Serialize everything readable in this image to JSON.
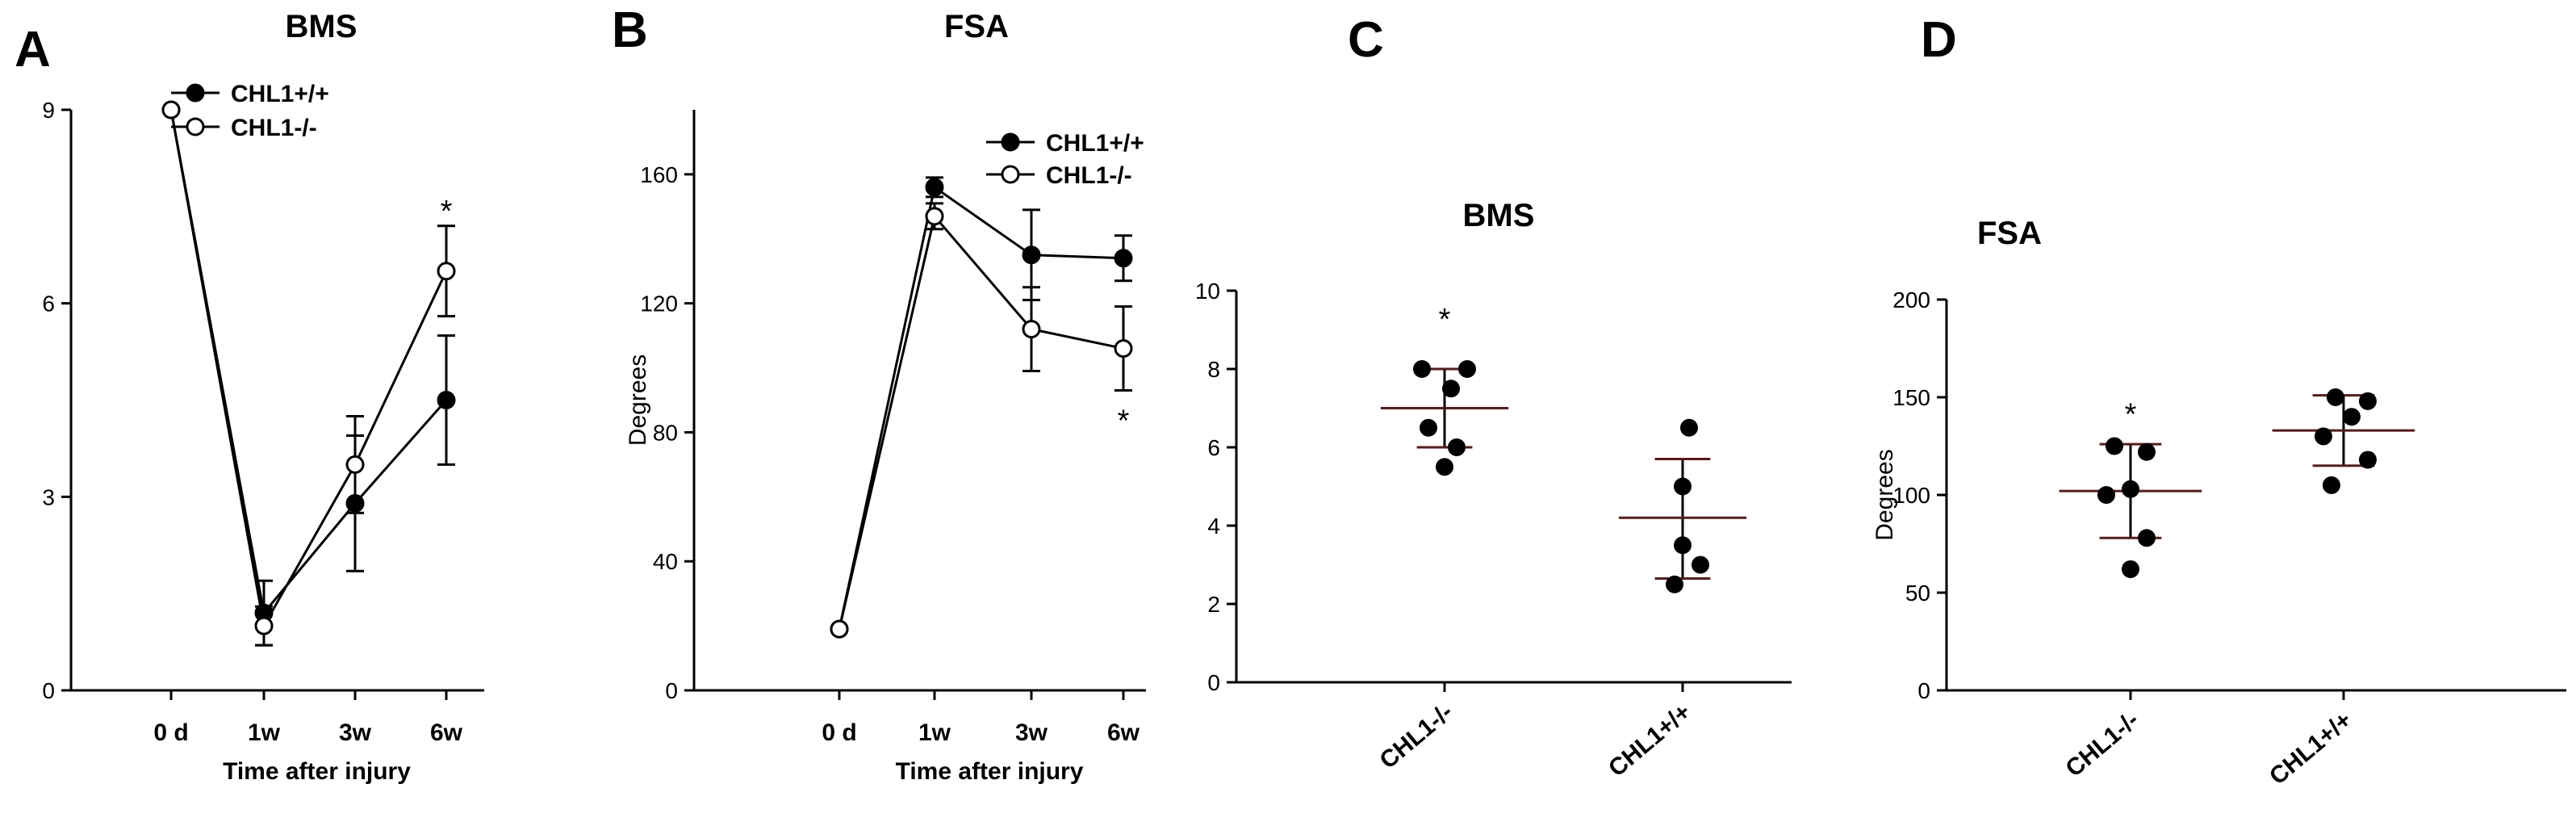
{
  "colors": {
    "axis": "#000000",
    "filled_marker": "#000000",
    "open_marker": "#ffffff",
    "mean_line_scatter": "#5a1a1a"
  },
  "chart_data": [
    {
      "panel": "A",
      "type": "line",
      "title": "BMS",
      "xlabel": "Time after injury",
      "ylabel": "",
      "categories": [
        "0 d",
        "1w",
        "3w",
        "6w"
      ],
      "ylim": [
        0,
        9
      ],
      "yticks": [
        0,
        3,
        6,
        9
      ],
      "series": [
        {
          "name": "CHL1+/+",
          "marker": "filled",
          "values": [
            9,
            1.2,
            2.9,
            4.5
          ],
          "errors": [
            0,
            0.5,
            1.05,
            1.0
          ]
        },
        {
          "name": "CHL1-/-",
          "marker": "open",
          "values": [
            9,
            1.0,
            3.5,
            6.5
          ],
          "errors": [
            0,
            0.3,
            0.75,
            0.7
          ]
        }
      ],
      "annotations": [
        {
          "text": "*",
          "category": "6w",
          "value": 7.45
        }
      ],
      "legend": "top-right"
    },
    {
      "panel": "B",
      "type": "line",
      "title": "FSA",
      "xlabel": "Time after injury",
      "ylabel": "Degrees",
      "categories": [
        "0 d",
        "1w",
        "3w",
        "6w"
      ],
      "ylim": [
        0,
        180
      ],
      "yticks": [
        0,
        40,
        80,
        120,
        160
      ],
      "series": [
        {
          "name": "CHL1+/+",
          "marker": "filled",
          "values": [
            19,
            156,
            135,
            134
          ],
          "errors": [
            0,
            3,
            14,
            7
          ]
        },
        {
          "name": "CHL1-/-",
          "marker": "open",
          "values": [
            19,
            147,
            112,
            106
          ],
          "errors": [
            0,
            4,
            13,
            13
          ]
        }
      ],
      "annotations": [
        {
          "text": "*",
          "category": "6w",
          "value": 84
        }
      ],
      "legend": "top-right"
    },
    {
      "panel": "C",
      "type": "scatter",
      "title": "BMS",
      "xlabel": "",
      "ylabel": "",
      "categories": [
        "CHL1-/-",
        "CHL1+/+"
      ],
      "ylim": [
        0,
        10
      ],
      "yticks": [
        0,
        2,
        4,
        6,
        8,
        10
      ],
      "groups": [
        {
          "name": "CHL1-/-",
          "points": [
            8,
            8,
            7.5,
            6.5,
            6,
            5.5
          ],
          "mean": 7.0,
          "sd_high": 8.0,
          "sd_low": 6.0
        },
        {
          "name": "CHL1+/+",
          "points": [
            6.5,
            5.0,
            3.5,
            3.0,
            2.5
          ],
          "mean": 4.2,
          "sd_high": 5.7,
          "sd_low": 2.65
        }
      ],
      "annotations": [
        {
          "text": "*",
          "group": "CHL1-/-",
          "value": 9.3
        }
      ]
    },
    {
      "panel": "D",
      "type": "scatter",
      "title": "FSA",
      "xlabel": "",
      "ylabel": "Degrees",
      "categories": [
        "CHL1-/-",
        "CHL1+/+"
      ],
      "ylim": [
        0,
        200
      ],
      "yticks": [
        0,
        50,
        100,
        150,
        200
      ],
      "groups": [
        {
          "name": "CHL1-/-",
          "points": [
            125,
            122,
            103,
            100,
            78,
            62
          ],
          "mean": 102,
          "sd_high": 126,
          "sd_low": 78
        },
        {
          "name": "CHL1+/+",
          "points": [
            150,
            148,
            140,
            130,
            118,
            105
          ],
          "mean": 133,
          "sd_high": 151,
          "sd_low": 115
        }
      ],
      "annotations": [
        {
          "text": "*",
          "group": "CHL1-/-",
          "value": 142
        }
      ]
    }
  ]
}
